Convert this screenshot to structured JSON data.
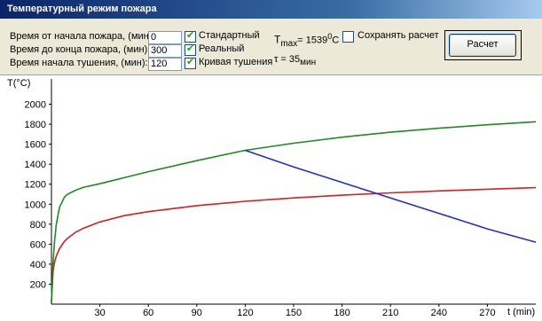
{
  "window": {
    "title": "Температурный режим пожара"
  },
  "form": {
    "start_label": "Время от начала пожара, (мин):",
    "start_value": "0",
    "end_label": "Время до конца пожара, (мин):",
    "end_value": "300",
    "extinguish_label": "Время начала тушения, (мин):",
    "extinguish_value": "120"
  },
  "options": {
    "standard_label": "Стандартный",
    "real_label": "Реальный",
    "extinguish_curve_label": "Кривая тушения",
    "save_label": "Сохранять расчет"
  },
  "results": {
    "tmax_prefix": "T",
    "tmax_sub": "max",
    "tmax_value": "= 1539",
    "tmax_deg": "0",
    "tmax_unit": "C",
    "tau_text": "τ = 35",
    "tau_unit": "мин"
  },
  "buttons": {
    "calc_label": "Расчет"
  },
  "colors": {
    "standard": "#d42020",
    "real": "#208a20",
    "extinguish": "#2030c8"
  },
  "chart_data": {
    "type": "line",
    "ylabel": "T(°C)",
    "xlabel": "t (min)",
    "xlim": [
      0,
      300
    ],
    "ylim": [
      0,
      2200
    ],
    "x_ticks": [
      30,
      60,
      90,
      120,
      150,
      180,
      210,
      240,
      270
    ],
    "y_ticks": [
      200,
      400,
      600,
      800,
      1000,
      1200,
      1400,
      1600,
      1800,
      2000
    ],
    "series": [
      {
        "key": "standard",
        "x": [
          0,
          1,
          2,
          3,
          5,
          8,
          10,
          15,
          20,
          30,
          45,
          60,
          90,
          120,
          150,
          180,
          210,
          240,
          270,
          300
        ],
        "values": [
          20,
          329,
          425,
          482,
          556,
          627,
          659,
          719,
          761,
          822,
          885,
          925,
          986,
          1029,
          1063,
          1090,
          1113,
          1133,
          1150,
          1166
        ]
      },
      {
        "key": "real",
        "x": [
          0,
          1,
          2,
          3,
          5,
          8,
          10,
          15,
          20,
          30,
          45,
          60,
          90,
          120,
          150,
          180,
          210,
          240,
          270,
          300
        ],
        "values": [
          20,
          420,
          640,
          800,
          970,
          1070,
          1100,
          1140,
          1170,
          1205,
          1265,
          1325,
          1435,
          1539,
          1610,
          1670,
          1720,
          1760,
          1795,
          1825
        ]
      },
      {
        "key": "extinguish",
        "x": [
          120,
          150,
          180,
          210,
          240,
          270,
          300
        ],
        "values": [
          1539,
          1373,
          1218,
          1063,
          908,
          753,
          620
        ]
      }
    ]
  }
}
